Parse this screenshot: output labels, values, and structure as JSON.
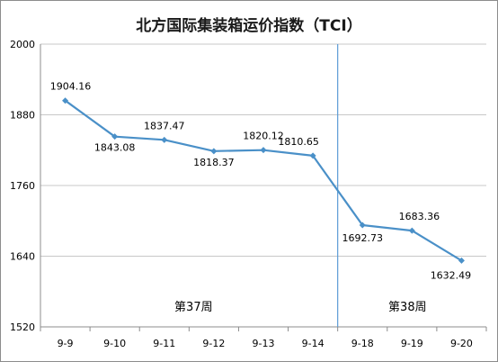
{
  "chart_data": {
    "type": "line",
    "title": "北方国际集装箱运价指数（TCI）",
    "categories": [
      "9-9",
      "9-10",
      "9-11",
      "9-12",
      "9-13",
      "9-14",
      "9-18",
      "9-19",
      "9-20"
    ],
    "series": [
      {
        "values": [
          1904.16,
          1843.08,
          1837.47,
          1818.37,
          1820.12,
          1810.65,
          1692.73,
          1683.36,
          1632.49
        ]
      }
    ],
    "data_labels": [
      "1904.16",
      "1843.08",
      "1837.47",
      "1818.37",
      "1820.12",
      "1810.65",
      "1692.73",
      "1683.36",
      "1632.49"
    ],
    "ylim": [
      1520,
      2000
    ],
    "yticks": [
      1520,
      1640,
      1760,
      1880,
      2000
    ],
    "grid": "horizontal",
    "xlabel": "",
    "ylabel": "",
    "week_labels": [
      "第37周",
      "第38周"
    ],
    "week_divider_after": "9-14",
    "line_color": "#4a90c8",
    "grid_color": "#c8c8c8",
    "divider_color": "#5b9bd5"
  }
}
